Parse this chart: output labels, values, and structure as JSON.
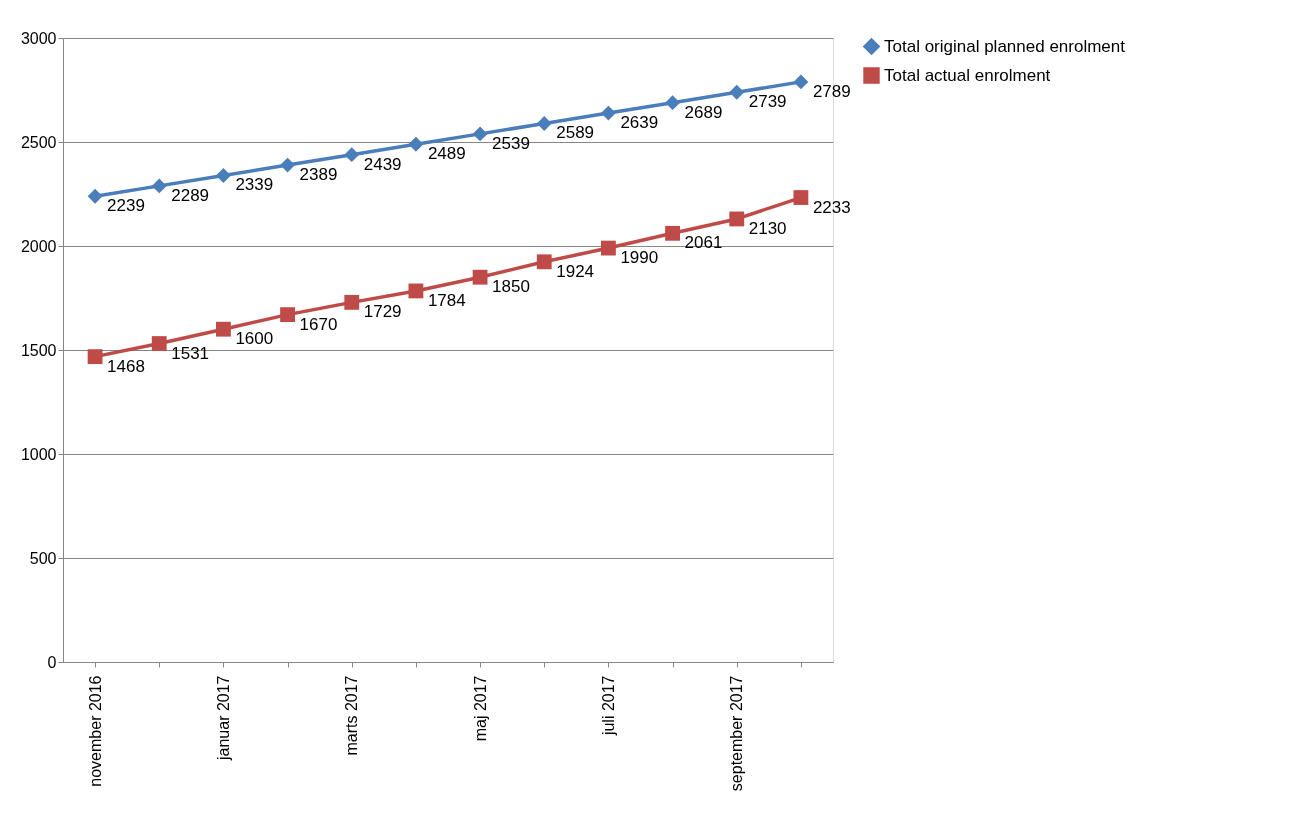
{
  "chart_data": {
    "type": "line",
    "categories": [
      "november 2016",
      null,
      "januar 2017",
      null,
      "marts 2017",
      null,
      "maj 2017",
      null,
      "juli 2017",
      null,
      "september 2017",
      null
    ],
    "series": [
      {
        "name": "Total original planned enrolment",
        "color": "#4a7ebb",
        "marker": "diamond",
        "values": [
          2239,
          2289,
          2339,
          2389,
          2439,
          2489,
          2539,
          2589,
          2639,
          2689,
          2739,
          2789
        ]
      },
      {
        "name": "Total actual enrolment",
        "color": "#be4b48",
        "marker": "square",
        "values": [
          1468,
          1531,
          1600,
          1670,
          1729,
          1784,
          1850,
          1924,
          1990,
          2061,
          2130,
          2233
        ]
      }
    ],
    "ylim": [
      0,
      3000
    ],
    "yticks": [
      0,
      500,
      1000,
      1500,
      2000,
      2500,
      3000
    ],
    "grid": "y",
    "legend": "right",
    "data_labels": true,
    "line_style": "solid"
  }
}
